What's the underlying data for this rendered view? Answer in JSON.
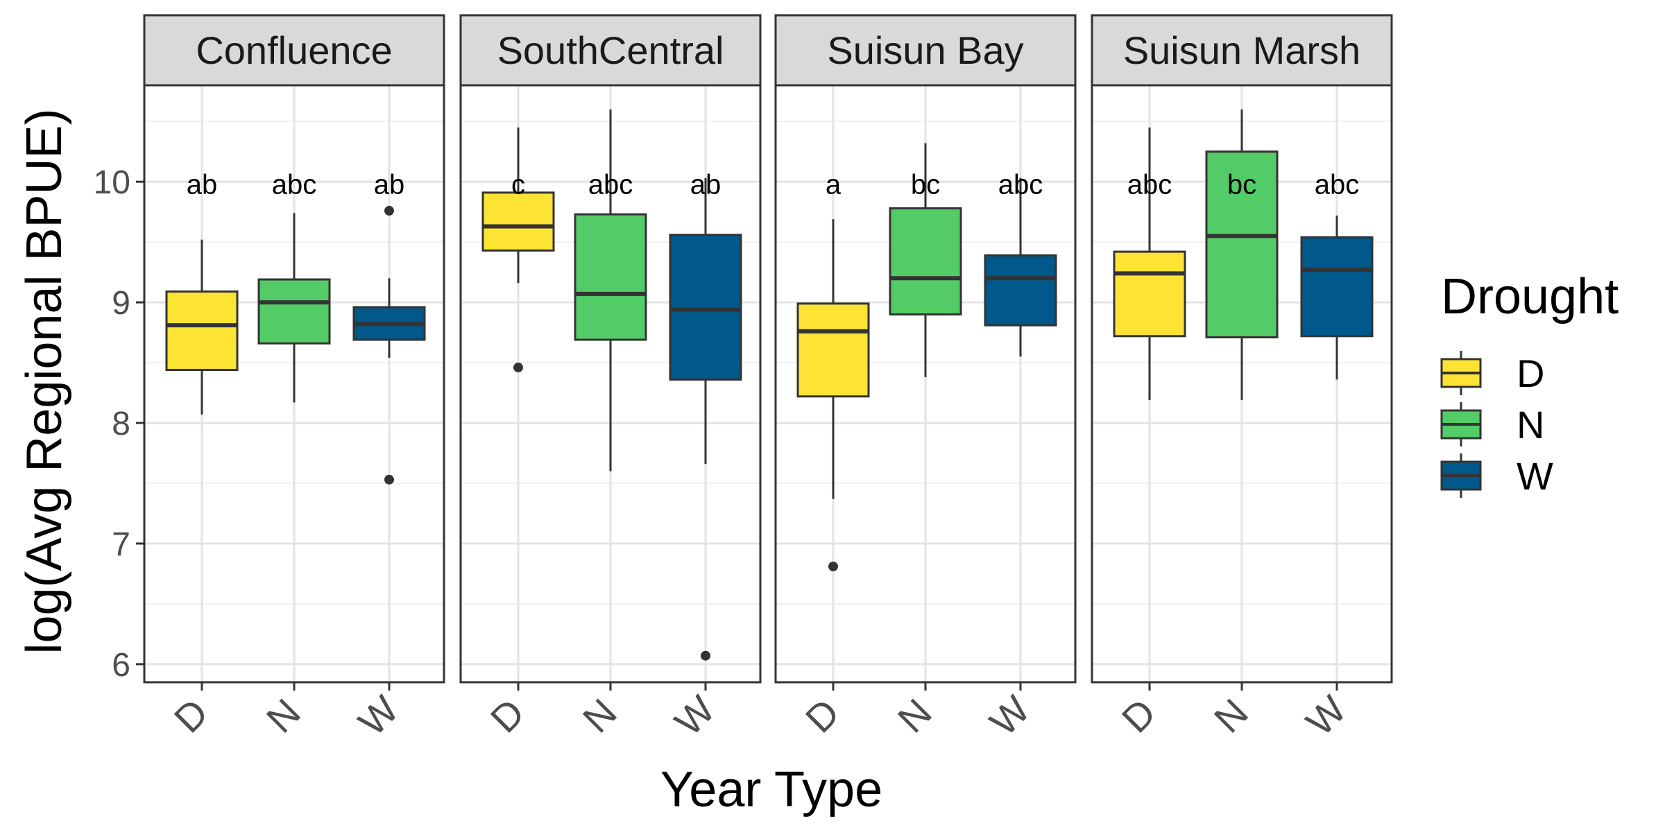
{
  "chart_data": {
    "type": "boxplot",
    "xlabel": "Year Type",
    "ylabel": "log(Avg Regional BPUE)",
    "ylim": [
      5.85,
      10.8
    ],
    "yticks": [
      6,
      7,
      8,
      9,
      10
    ],
    "categories": [
      "D",
      "N",
      "W"
    ],
    "grid": true,
    "legend": {
      "title": "Drought",
      "position": "right",
      "entries": [
        {
          "label": "D",
          "color": "#FDE333"
        },
        {
          "label": "N",
          "color": "#53CC67"
        },
        {
          "label": "W",
          "color": "#00588B"
        }
      ]
    },
    "panels": [
      {
        "title": "Confluence",
        "boxes": [
          {
            "category": "D",
            "lower_whisker": 8.07,
            "q1": 8.44,
            "median": 8.81,
            "q3": 9.09,
            "upper_whisker": 9.52,
            "outliers": [],
            "label": "ab"
          },
          {
            "category": "N",
            "lower_whisker": 8.17,
            "q1": 8.66,
            "median": 9.0,
            "q3": 9.19,
            "upper_whisker": 9.74,
            "outliers": [],
            "label": "abc"
          },
          {
            "category": "W",
            "lower_whisker": 8.54,
            "q1": 8.69,
            "median": 8.82,
            "q3": 8.96,
            "upper_whisker": 9.2,
            "outliers": [
              9.76,
              7.53
            ],
            "label": "ab"
          }
        ]
      },
      {
        "title": "SouthCentral",
        "boxes": [
          {
            "category": "D",
            "lower_whisker": 9.16,
            "q1": 9.43,
            "median": 9.63,
            "q3": 9.91,
            "upper_whisker": 10.45,
            "outliers": [
              8.46
            ],
            "label": "c"
          },
          {
            "category": "N",
            "lower_whisker": 7.6,
            "q1": 8.69,
            "median": 9.07,
            "q3": 9.73,
            "upper_whisker": 10.6,
            "outliers": [],
            "label": "abc"
          },
          {
            "category": "W",
            "lower_whisker": 7.66,
            "q1": 8.36,
            "median": 8.94,
            "q3": 9.56,
            "upper_whisker": 10.03,
            "outliers": [
              6.07
            ],
            "label": "ab"
          }
        ]
      },
      {
        "title": "Suisun Bay",
        "boxes": [
          {
            "category": "D",
            "lower_whisker": 7.37,
            "q1": 8.22,
            "median": 8.76,
            "q3": 8.99,
            "upper_whisker": 9.69,
            "outliers": [
              6.81
            ],
            "label": "a"
          },
          {
            "category": "N",
            "lower_whisker": 8.38,
            "q1": 8.9,
            "median": 9.2,
            "q3": 9.78,
            "upper_whisker": 10.32,
            "outliers": [],
            "label": "bc"
          },
          {
            "category": "W",
            "lower_whisker": 8.55,
            "q1": 8.81,
            "median": 9.2,
            "q3": 9.39,
            "upper_whisker": 10.03,
            "outliers": [],
            "label": "abc"
          }
        ]
      },
      {
        "title": "Suisun Marsh",
        "boxes": [
          {
            "category": "D",
            "lower_whisker": 8.19,
            "q1": 8.72,
            "median": 9.24,
            "q3": 9.42,
            "upper_whisker": 10.45,
            "outliers": [],
            "label": "abc"
          },
          {
            "category": "N",
            "lower_whisker": 8.19,
            "q1": 8.71,
            "median": 9.55,
            "q3": 10.25,
            "upper_whisker": 10.6,
            "outliers": [],
            "label": "bc"
          },
          {
            "category": "W",
            "lower_whisker": 8.36,
            "q1": 8.72,
            "median": 9.27,
            "q3": 9.54,
            "upper_whisker": 9.72,
            "outliers": [],
            "label": "abc"
          }
        ]
      }
    ],
    "label_y": 9.9
  }
}
